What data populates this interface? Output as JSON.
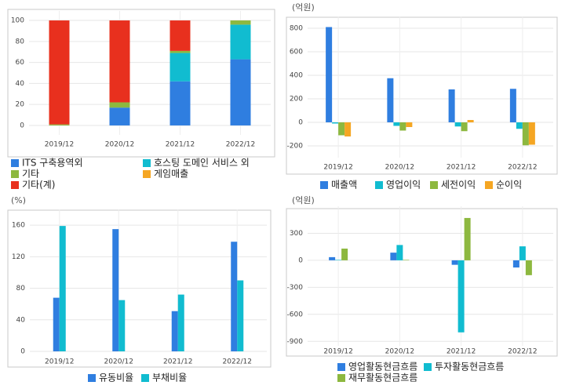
{
  "chart_data": [
    {
      "type": "bar",
      "stacked": true,
      "categories": [
        "2019/12",
        "2020/12",
        "2021/12",
        "2022/12"
      ],
      "ylim": [
        -9,
        109
      ],
      "yticks": [
        0,
        20,
        40,
        60,
        80,
        100
      ],
      "grid": true,
      "series": [
        {
          "name": "ITS 구축용역외",
          "color": "#2f7ee0",
          "values": [
            0,
            17,
            42,
            63
          ]
        },
        {
          "name": "호스팅 도메인 서비스 외",
          "color": "#11bcd0",
          "values": [
            0,
            0,
            27,
            33
          ]
        },
        {
          "name": "기타",
          "color": "#8db83f",
          "values": [
            1,
            5,
            2,
            4
          ]
        },
        {
          "name": "게임매출",
          "color": "#f5a623",
          "values": [
            0,
            0,
            0,
            0
          ]
        },
        {
          "name": "기타(계)",
          "color": "#e8301e",
          "values": [
            99,
            78,
            29,
            0
          ]
        }
      ]
    },
    {
      "type": "bar",
      "unit": "(억원)",
      "categories": [
        "2019/12",
        "2020/12",
        "2021/12",
        "2022/12"
      ],
      "ylim": [
        -300,
        900
      ],
      "yticks": [
        -200,
        0,
        200,
        400,
        600,
        800
      ],
      "grid": true,
      "series": [
        {
          "name": "매출액",
          "color": "#2f7ee0",
          "values": [
            810,
            375,
            280,
            285
          ]
        },
        {
          "name": "영업이익",
          "color": "#11bcd0",
          "values": [
            -10,
            -30,
            -35,
            -55
          ]
        },
        {
          "name": "세전이익",
          "color": "#8db83f",
          "values": [
            -110,
            -70,
            -75,
            -195
          ]
        },
        {
          "name": "순이익",
          "color": "#f5a623",
          "values": [
            -120,
            -40,
            20,
            -190
          ]
        }
      ]
    },
    {
      "type": "bar",
      "unit": "(%)",
      "categories": [
        "2019/12",
        "2020/12",
        "2021/12",
        "2022/12"
      ],
      "ylim": [
        0,
        180
      ],
      "yticks": [
        0,
        40,
        80,
        120,
        160
      ],
      "grid": true,
      "series": [
        {
          "name": "유동비율",
          "color": "#2f7ee0",
          "values": [
            68,
            155,
            51,
            139
          ]
        },
        {
          "name": "부채비율",
          "color": "#11bcd0",
          "values": [
            159,
            65,
            72,
            90
          ]
        }
      ]
    },
    {
      "type": "bar",
      "unit": "(억원)",
      "categories": [
        "2019/12",
        "2020/12",
        "2021/12",
        "2022/12"
      ],
      "ylim": [
        -950,
        600
      ],
      "yticks": [
        -900,
        -600,
        -300,
        0,
        300
      ],
      "grid": true,
      "series": [
        {
          "name": "영업활동현금흐름",
          "color": "#2f7ee0",
          "values": [
            35,
            85,
            -50,
            -80
          ]
        },
        {
          "name": "투자활동현금흐름",
          "color": "#11bcd0",
          "values": [
            5,
            170,
            -800,
            155
          ]
        },
        {
          "name": "재무활동현금흐름",
          "color": "#8db83f",
          "values": [
            130,
            5,
            470,
            -165
          ]
        }
      ]
    }
  ]
}
